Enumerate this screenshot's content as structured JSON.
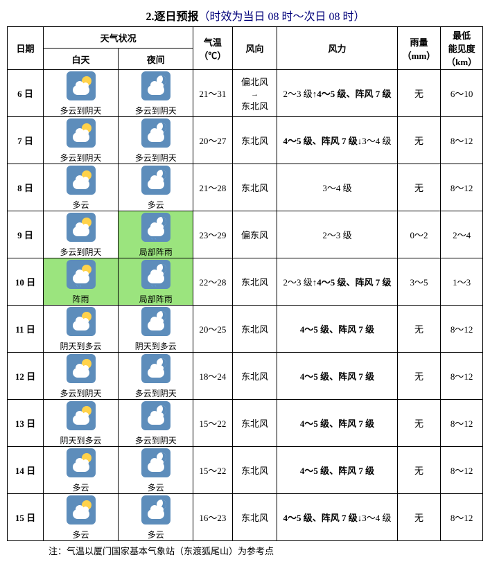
{
  "title_prefix": "2.逐日预报",
  "title_note": "（时效为当日 08 时～次日 08 时）",
  "header": {
    "date": "日期",
    "weather": "天气状况",
    "day": "白天",
    "night": "夜间",
    "temp": "气温\n（℃）",
    "winddir": "风向",
    "wind": "风力",
    "rain": "雨量\n（mm）",
    "vis": "最低\n能见度\n（km）"
  },
  "icons": {
    "cloudy_to_overcast_day": {
      "bg": "normal",
      "parts": [
        "sun",
        "cloud"
      ]
    },
    "cloudy_to_overcast_night": {
      "bg": "normal",
      "parts": [
        "moon",
        "cloud"
      ]
    },
    "partly_cloudy_day": {
      "bg": "normal",
      "parts": [
        "sun",
        "cloud"
      ]
    },
    "partly_cloudy_night": {
      "bg": "normal",
      "parts": [
        "moon",
        "cloud"
      ]
    },
    "overcast_to_cloudy_day": {
      "bg": "normal",
      "parts": [
        "sun",
        "cloud"
      ]
    },
    "overcast_to_cloudy_night": {
      "bg": "normal",
      "parts": [
        "moon",
        "cloud"
      ]
    },
    "local_shower_night": {
      "bg": "rain",
      "parts": [
        "moon",
        "cloud",
        "rain"
      ]
    },
    "shower_day": {
      "bg": "rain",
      "parts": [
        "sun",
        "cloud",
        "rain"
      ]
    }
  },
  "rows": [
    {
      "date": "6 日",
      "day": {
        "icon": "cloudy_to_overcast_day",
        "label": "多云到阴天"
      },
      "night": {
        "icon": "cloudy_to_overcast_night",
        "label": "多云到阴天"
      },
      "temp": "21～31",
      "winddir": "偏北风\n→\n东北风",
      "wind": "2～3 级↑<b>4～5 级、阵风 7 级</b>",
      "rain": "无",
      "vis": "6～10"
    },
    {
      "date": "7 日",
      "day": {
        "icon": "cloudy_to_overcast_day",
        "label": "多云到阴天"
      },
      "night": {
        "icon": "cloudy_to_overcast_night",
        "label": "多云到阴天"
      },
      "temp": "20～27",
      "winddir": "东北风",
      "wind": "<b>4～5 级、阵风 7 级</b>↓3～4 级",
      "rain": "无",
      "vis": "8～12"
    },
    {
      "date": "8 日",
      "day": {
        "icon": "partly_cloudy_day",
        "label": "多云"
      },
      "night": {
        "icon": "partly_cloudy_night",
        "label": "多云"
      },
      "temp": "21～28",
      "winddir": "东北风",
      "wind": "3～4 级",
      "rain": "无",
      "vis": "8～12"
    },
    {
      "date": "9 日",
      "day": {
        "icon": "cloudy_to_overcast_day",
        "label": "多云到阴天"
      },
      "night": {
        "icon": "local_shower_night",
        "label": "局部阵雨"
      },
      "temp": "23～29",
      "winddir": "偏东风",
      "wind": "2～3 级",
      "rain": "0～2",
      "vis": "2～4"
    },
    {
      "date": "10 日",
      "day": {
        "icon": "shower_day",
        "label": "阵雨"
      },
      "night": {
        "icon": "local_shower_night",
        "label": "局部阵雨"
      },
      "temp": "22～28",
      "winddir": "东北风",
      "wind": "2～3 级↑<b>4～5 级、阵风 7 级</b>",
      "rain": "3～5",
      "vis": "1～3"
    },
    {
      "date": "11 日",
      "day": {
        "icon": "overcast_to_cloudy_day",
        "label": "阴天到多云"
      },
      "night": {
        "icon": "overcast_to_cloudy_night",
        "label": "阴天到多云"
      },
      "temp": "20～25",
      "winddir": "东北风",
      "wind": "<b>4～5 级、阵风 7 级</b>",
      "rain": "无",
      "vis": "8～12"
    },
    {
      "date": "12 日",
      "day": {
        "icon": "cloudy_to_overcast_day",
        "label": "多云到阴天"
      },
      "night": {
        "icon": "cloudy_to_overcast_night",
        "label": "多云到阴天"
      },
      "temp": "18～24",
      "winddir": "东北风",
      "wind": "<b>4～5 级、阵风 7 级</b>",
      "rain": "无",
      "vis": "8～12"
    },
    {
      "date": "13 日",
      "day": {
        "icon": "overcast_to_cloudy_day",
        "label": "阴天到多云"
      },
      "night": {
        "icon": "cloudy_to_overcast_night",
        "label": "多云到阴天"
      },
      "temp": "15～22",
      "winddir": "东北风",
      "wind": "<b>4～5 级、阵风 7 级</b>",
      "rain": "无",
      "vis": "8～12"
    },
    {
      "date": "14 日",
      "day": {
        "icon": "partly_cloudy_day",
        "label": "多云"
      },
      "night": {
        "icon": "partly_cloudy_night",
        "label": "多云"
      },
      "temp": "15～22",
      "winddir": "东北风",
      "wind": "<b>4～5 级、阵风 7 级</b>",
      "rain": "无",
      "vis": "8～12"
    },
    {
      "date": "15 日",
      "day": {
        "icon": "partly_cloudy_day",
        "label": "多云"
      },
      "night": {
        "icon": "partly_cloudy_night",
        "label": "多云"
      },
      "temp": "16～23",
      "winddir": "东北风",
      "wind": "<b>4～5 级、阵风 7 级</b>↓3～4 级",
      "rain": "无",
      "vis": "8～12"
    }
  ],
  "footnote": "注：气温以厦门国家基本气象站（东渡狐尾山）为参考点"
}
